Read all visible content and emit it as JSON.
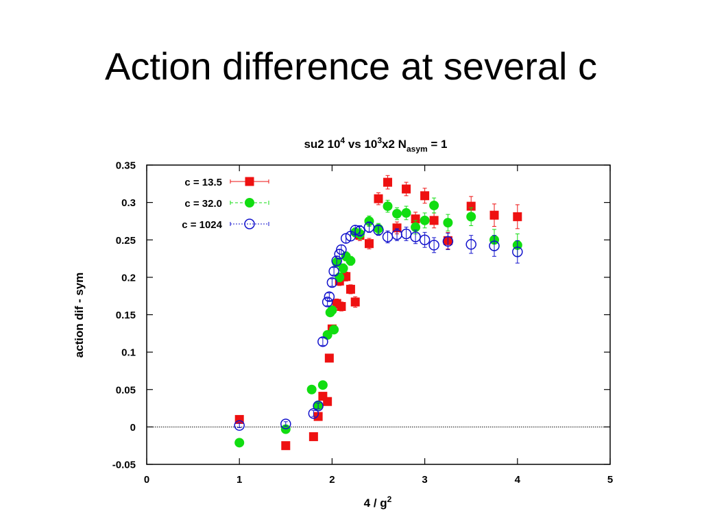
{
  "slide": {
    "title": "Action difference at several c"
  },
  "colors": {
    "c135": "#ee1111",
    "c320": "#11dd11",
    "c1024": "#1111cc",
    "zero_line": "#000000"
  },
  "chart_data": {
    "type": "scatter",
    "title": {
      "parts": [
        {
          "text": "su2 10",
          "shift": "base"
        },
        {
          "text": "4",
          "shift": "super"
        },
        {
          "text": " vs 10",
          "shift": "base"
        },
        {
          "text": "3",
          "shift": "super"
        },
        {
          "text": "x2 N",
          "shift": "base"
        },
        {
          "text": "asym",
          "shift": "sub"
        },
        {
          "text": " = 1",
          "shift": "base"
        }
      ]
    },
    "xlabel": {
      "parts": [
        {
          "text": "4 / g",
          "shift": "base"
        },
        {
          "text": "2",
          "shift": "super"
        }
      ]
    },
    "ylabel": "action dif - sym",
    "xlim": [
      0,
      5
    ],
    "ylim": [
      -0.05,
      0.35
    ],
    "x_ticks": [
      "0",
      "1",
      "2",
      "3",
      "4",
      "5"
    ],
    "y_ticks": [
      "-0.05",
      "0",
      "0.05",
      "0.1",
      "0.15",
      "0.2",
      "0.25",
      "0.3",
      "0.35"
    ],
    "zero_line": true,
    "legend_position": "top-left",
    "series": [
      {
        "name": "c = 13.5",
        "marker": "filled-square",
        "color": "#ee1111",
        "points": [
          {
            "x": 1.0,
            "y": 0.01,
            "err": 0.004
          },
          {
            "x": 1.5,
            "y": -0.025,
            "err": 0.004
          },
          {
            "x": 1.8,
            "y": -0.013,
            "err": 0.004
          },
          {
            "x": 1.85,
            "y": 0.014,
            "err": 0.004
          },
          {
            "x": 1.9,
            "y": 0.041,
            "err": 0.004
          },
          {
            "x": 1.95,
            "y": 0.034,
            "err": 0.004
          },
          {
            "x": 1.97,
            "y": 0.092,
            "err": 0.005
          },
          {
            "x": 2.0,
            "y": 0.131,
            "err": 0.005
          },
          {
            "x": 2.05,
            "y": 0.165,
            "err": 0.006
          },
          {
            "x": 2.08,
            "y": 0.195,
            "err": 0.006
          },
          {
            "x": 2.1,
            "y": 0.161,
            "err": 0.006
          },
          {
            "x": 2.15,
            "y": 0.201,
            "err": 0.006
          },
          {
            "x": 2.2,
            "y": 0.184,
            "err": 0.006
          },
          {
            "x": 2.25,
            "y": 0.167,
            "err": 0.007
          },
          {
            "x": 2.3,
            "y": 0.256,
            "err": 0.007
          },
          {
            "x": 2.4,
            "y": 0.245,
            "err": 0.007
          },
          {
            "x": 2.5,
            "y": 0.305,
            "err": 0.008
          },
          {
            "x": 2.6,
            "y": 0.327,
            "err": 0.009
          },
          {
            "x": 2.7,
            "y": 0.266,
            "err": 0.008
          },
          {
            "x": 2.8,
            "y": 0.318,
            "err": 0.009
          },
          {
            "x": 2.9,
            "y": 0.278,
            "err": 0.009
          },
          {
            "x": 3.0,
            "y": 0.309,
            "err": 0.01
          },
          {
            "x": 3.1,
            "y": 0.276,
            "err": 0.01
          },
          {
            "x": 3.25,
            "y": 0.249,
            "err": 0.011
          },
          {
            "x": 3.5,
            "y": 0.295,
            "err": 0.013
          },
          {
            "x": 3.75,
            "y": 0.283,
            "err": 0.015
          },
          {
            "x": 4.0,
            "y": 0.281,
            "err": 0.016
          }
        ]
      },
      {
        "name": "c = 32.0",
        "marker": "filled-circle",
        "color": "#11dd11",
        "points": [
          {
            "x": 1.0,
            "y": -0.021,
            "err": 0.003
          },
          {
            "x": 1.5,
            "y": -0.003,
            "err": 0.003
          },
          {
            "x": 1.78,
            "y": 0.05,
            "err": 0.004
          },
          {
            "x": 1.85,
            "y": 0.029,
            "err": 0.004
          },
          {
            "x": 1.9,
            "y": 0.056,
            "err": 0.004
          },
          {
            "x": 1.95,
            "y": 0.123,
            "err": 0.005
          },
          {
            "x": 1.98,
            "y": 0.153,
            "err": 0.005
          },
          {
            "x": 2.0,
            "y": 0.156,
            "err": 0.005
          },
          {
            "x": 2.02,
            "y": 0.13,
            "err": 0.005
          },
          {
            "x": 2.05,
            "y": 0.22,
            "err": 0.006
          },
          {
            "x": 2.08,
            "y": 0.2,
            "err": 0.006
          },
          {
            "x": 2.12,
            "y": 0.212,
            "err": 0.006
          },
          {
            "x": 2.15,
            "y": 0.228,
            "err": 0.006
          },
          {
            "x": 2.2,
            "y": 0.222,
            "err": 0.006
          },
          {
            "x": 2.25,
            "y": 0.26,
            "err": 0.006
          },
          {
            "x": 2.3,
            "y": 0.258,
            "err": 0.007
          },
          {
            "x": 2.4,
            "y": 0.275,
            "err": 0.007
          },
          {
            "x": 2.5,
            "y": 0.265,
            "err": 0.007
          },
          {
            "x": 2.6,
            "y": 0.295,
            "err": 0.008
          },
          {
            "x": 2.7,
            "y": 0.285,
            "err": 0.008
          },
          {
            "x": 2.8,
            "y": 0.286,
            "err": 0.009
          },
          {
            "x": 2.9,
            "y": 0.267,
            "err": 0.009
          },
          {
            "x": 3.0,
            "y": 0.276,
            "err": 0.01
          },
          {
            "x": 3.1,
            "y": 0.296,
            "err": 0.01
          },
          {
            "x": 3.25,
            "y": 0.273,
            "err": 0.011
          },
          {
            "x": 3.5,
            "y": 0.281,
            "err": 0.012
          },
          {
            "x": 3.75,
            "y": 0.25,
            "err": 0.014
          },
          {
            "x": 4.0,
            "y": 0.243,
            "err": 0.015
          }
        ]
      },
      {
        "name": "c = 1024",
        "marker": "open-circle",
        "color": "#1111cc",
        "points": [
          {
            "x": 1.0,
            "y": 0.002,
            "err": 0.003
          },
          {
            "x": 1.5,
            "y": 0.004,
            "err": 0.003
          },
          {
            "x": 1.8,
            "y": 0.018,
            "err": 0.004
          },
          {
            "x": 1.85,
            "y": 0.028,
            "err": 0.004
          },
          {
            "x": 1.9,
            "y": 0.114,
            "err": 0.005
          },
          {
            "x": 1.95,
            "y": 0.167,
            "err": 0.005
          },
          {
            "x": 1.97,
            "y": 0.174,
            "err": 0.005
          },
          {
            "x": 2.0,
            "y": 0.193,
            "err": 0.005
          },
          {
            "x": 2.02,
            "y": 0.208,
            "err": 0.005
          },
          {
            "x": 2.05,
            "y": 0.222,
            "err": 0.006
          },
          {
            "x": 2.08,
            "y": 0.231,
            "err": 0.006
          },
          {
            "x": 2.1,
            "y": 0.237,
            "err": 0.006
          },
          {
            "x": 2.15,
            "y": 0.252,
            "err": 0.006
          },
          {
            "x": 2.2,
            "y": 0.255,
            "err": 0.006
          },
          {
            "x": 2.25,
            "y": 0.263,
            "err": 0.006
          },
          {
            "x": 2.3,
            "y": 0.262,
            "err": 0.007
          },
          {
            "x": 2.4,
            "y": 0.267,
            "err": 0.007
          },
          {
            "x": 2.5,
            "y": 0.263,
            "err": 0.007
          },
          {
            "x": 2.6,
            "y": 0.254,
            "err": 0.008
          },
          {
            "x": 2.7,
            "y": 0.257,
            "err": 0.008
          },
          {
            "x": 2.8,
            "y": 0.258,
            "err": 0.009
          },
          {
            "x": 2.9,
            "y": 0.254,
            "err": 0.009
          },
          {
            "x": 3.0,
            "y": 0.25,
            "err": 0.01
          },
          {
            "x": 3.1,
            "y": 0.243,
            "err": 0.01
          },
          {
            "x": 3.25,
            "y": 0.248,
            "err": 0.011
          },
          {
            "x": 3.5,
            "y": 0.244,
            "err": 0.012
          },
          {
            "x": 3.75,
            "y": 0.242,
            "err": 0.014
          },
          {
            "x": 4.0,
            "y": 0.234,
            "err": 0.015
          }
        ]
      }
    ]
  }
}
